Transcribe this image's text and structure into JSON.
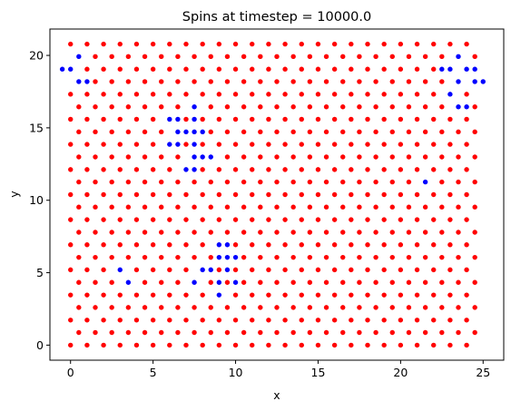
{
  "chart_data": {
    "type": "scatter",
    "title": "Spins at timestep = 10000.0",
    "xlabel": "x",
    "ylabel": "y",
    "xlim": [
      -1.25,
      26.25
    ],
    "ylim": [
      -1.04,
      21.82
    ],
    "xticks": [
      0,
      5,
      10,
      15,
      20,
      25
    ],
    "yticks": [
      0,
      5,
      10,
      15,
      20
    ],
    "lattice": {
      "rows": 25,
      "cols": 25,
      "x_spacing": 1.0,
      "y_spacing": 0.866,
      "odd_row_x_offset": 0.5
    },
    "grid": false,
    "legend": "none",
    "series": [
      {
        "spin": "up",
        "color": "#ff0000",
        "points": "all lattice sites not listed in the down series"
      },
      {
        "spin": "down",
        "color": "#0000ff",
        "points": [
          [
            0.5,
            19.92
          ],
          [
            0.0,
            19.05
          ],
          [
            -0.5,
            19.05
          ],
          [
            0.5,
            18.19
          ],
          [
            1.0,
            18.19
          ],
          [
            23.5,
            19.92
          ],
          [
            22.5,
            19.05
          ],
          [
            23.0,
            19.05
          ],
          [
            24.0,
            19.05
          ],
          [
            24.5,
            19.05
          ],
          [
            23.0,
            17.32
          ],
          [
            23.5,
            18.19
          ],
          [
            24.5,
            18.19
          ],
          [
            25.0,
            18.19
          ],
          [
            23.5,
            16.45
          ],
          [
            24.0,
            16.45
          ],
          [
            7.5,
            16.45
          ],
          [
            6.0,
            15.59
          ],
          [
            6.5,
            15.59
          ],
          [
            7.5,
            15.59
          ],
          [
            6.5,
            14.72
          ],
          [
            7.0,
            14.72
          ],
          [
            7.5,
            14.72
          ],
          [
            8.0,
            14.72
          ],
          [
            6.0,
            13.86
          ],
          [
            6.5,
            13.86
          ],
          [
            7.5,
            13.86
          ],
          [
            7.5,
            12.99
          ],
          [
            8.0,
            12.99
          ],
          [
            8.5,
            12.99
          ],
          [
            7.0,
            12.12
          ],
          [
            7.5,
            12.12
          ],
          [
            21.5,
            11.26
          ],
          [
            9.0,
            6.93
          ],
          [
            9.5,
            6.93
          ],
          [
            9.0,
            6.06
          ],
          [
            9.5,
            6.06
          ],
          [
            10.0,
            6.06
          ],
          [
            8.0,
            5.2
          ],
          [
            8.5,
            5.2
          ],
          [
            9.5,
            5.2
          ],
          [
            3.0,
            5.2
          ],
          [
            7.5,
            4.33
          ],
          [
            9.0,
            4.33
          ],
          [
            10.0,
            4.33
          ],
          [
            3.5,
            4.33
          ],
          [
            9.0,
            3.46
          ]
        ]
      }
    ]
  }
}
